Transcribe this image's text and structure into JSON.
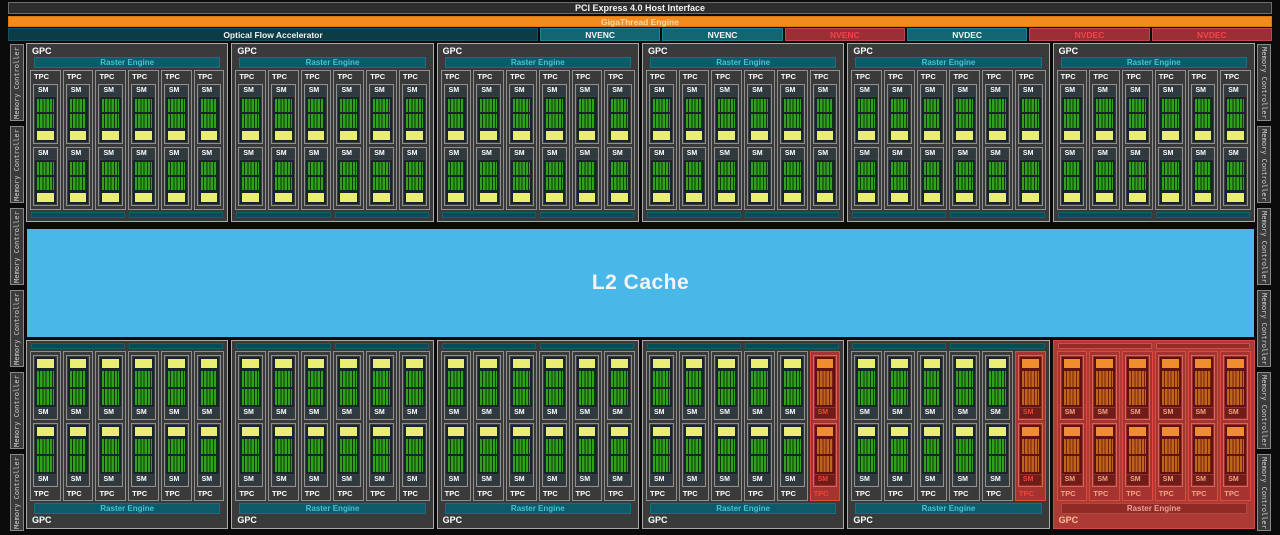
{
  "labels": {
    "pci": "PCI Express 4.0 Host Interface",
    "gigathread": "GigaThread Engine",
    "ofa": "Optical Flow Accelerator",
    "l2": "L2 Cache",
    "gpc": "GPC",
    "raster": "Raster Engine",
    "tpc": "TPC",
    "sm": "SM",
    "memory_controller": "Memory Controller"
  },
  "codec_row": [
    {
      "label": "NVENC",
      "state": "enabled"
    },
    {
      "label": "NVENC",
      "state": "enabled"
    },
    {
      "label": "NVENC",
      "state": "disabled"
    },
    {
      "label": "NVDEC",
      "state": "enabled"
    },
    {
      "label": "NVDEC",
      "state": "disabled"
    },
    {
      "label": "NVDEC",
      "state": "disabled"
    }
  ],
  "structure": {
    "tpcs_per_gpc": 6,
    "sms_per_tpc": 2,
    "memory_controllers_per_side": 6,
    "top_gpcs": [
      {
        "disabled_tpcs": [],
        "fully_disabled": false
      },
      {
        "disabled_tpcs": [],
        "fully_disabled": false
      },
      {
        "disabled_tpcs": [],
        "fully_disabled": false
      },
      {
        "disabled_tpcs": [],
        "fully_disabled": false
      },
      {
        "disabled_tpcs": [],
        "fully_disabled": false
      },
      {
        "disabled_tpcs": [],
        "fully_disabled": false
      }
    ],
    "bottom_gpcs": [
      {
        "disabled_tpcs": [],
        "fully_disabled": false
      },
      {
        "disabled_tpcs": [],
        "fully_disabled": false
      },
      {
        "disabled_tpcs": [],
        "fully_disabled": false
      },
      {
        "disabled_tpcs": [
          5
        ],
        "fully_disabled": false
      },
      {
        "disabled_tpcs": [
          5
        ],
        "fully_disabled": false
      },
      {
        "disabled_tpcs": [],
        "fully_disabled": true
      }
    ]
  },
  "colors": {
    "background": "#0b0b0b",
    "host_interface_bar": "#2d2d2d",
    "gigathread_orange": "#f28a1e",
    "ofa_teal_dark": "#0c3d47",
    "codec_teal": "#116672",
    "codec_red": "#9c2f35",
    "codec_red_text": "#f2444c",
    "gpc_gray": "#3a3a3a",
    "raster_teal": "#0d5a68",
    "raster_text_cyan": "#41c4d6",
    "core_green": "#2fa21b",
    "cache_yellow": "#e9ed72",
    "l2_blue": "#49b7e8",
    "disabled_red": "#a53431",
    "disabled_orange_band": "#f18d2c",
    "disabled_core_orange": "#bc661c",
    "mem_ctrl_gray": "#3b3b3b"
  }
}
